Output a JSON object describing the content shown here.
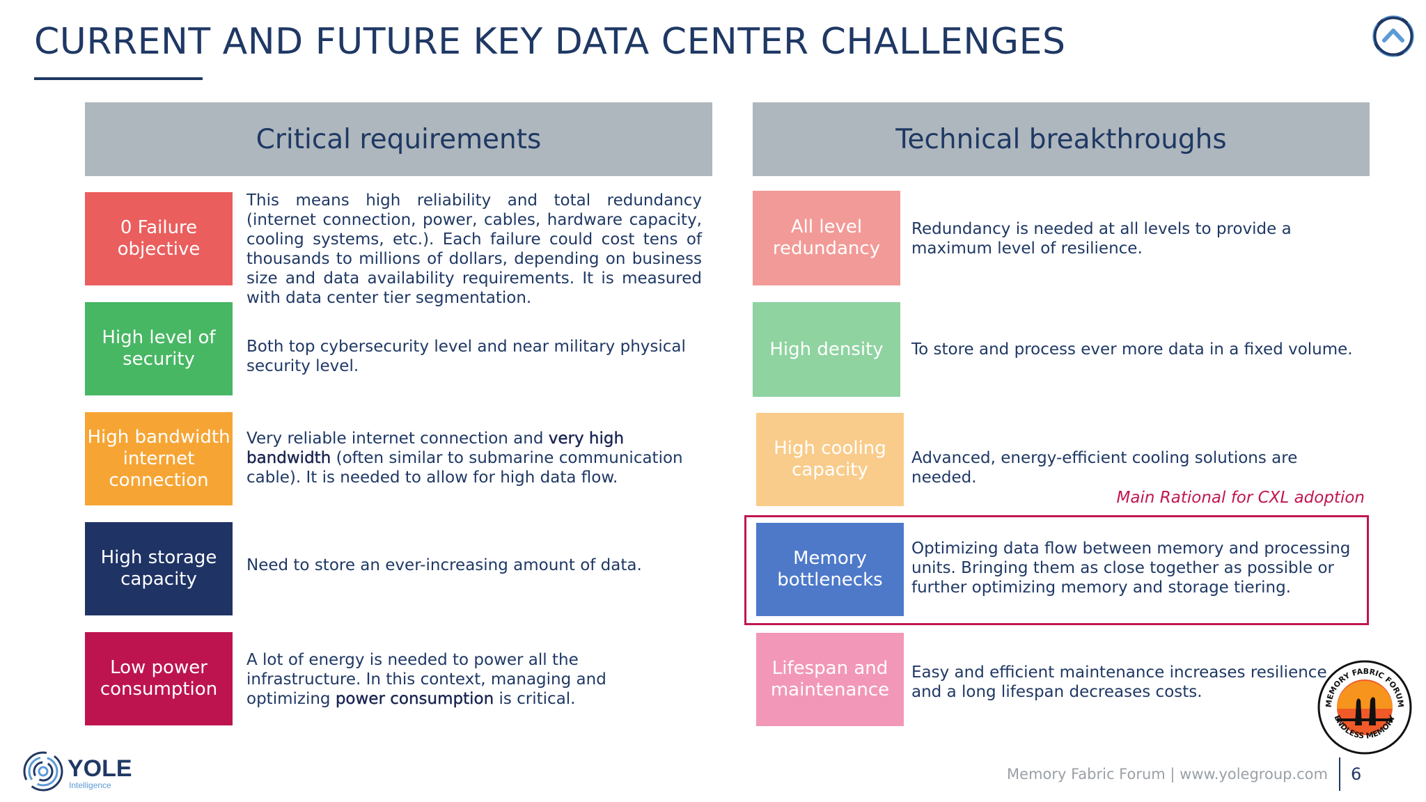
{
  "title": "CURRENT AND FUTURE KEY DATA CENTER CHALLENGES",
  "left_header": "Critical requirements",
  "right_header": "Technical breakthroughs",
  "colors": {
    "navy": "#1f3864",
    "header_gray": "#aeb7bd",
    "highlight": "#c0164f"
  },
  "left_items": [
    {
      "label": "0 Failure objective",
      "color": "#eb5e5e",
      "desc": "This means high reliability and total redundancy (internet connection, power, cables, hardware capacity, cooling systems, etc.). Each failure could cost tens of thousands to millions of dollars, depending on business size and data availability requirements. It is measured with data center tier segmentation."
    },
    {
      "label": "High level of security",
      "color": "#47b763",
      "desc": "Both top cybersecurity level and near military physical security level."
    },
    {
      "label": "High bandwidth internet connection",
      "color": "#f6a534",
      "desc_pre": "Very reliable internet connection and ",
      "desc_bold": "very high bandwidth",
      "desc_post": " (often similar to submarine communication cable). It is needed to allow for high data flow."
    },
    {
      "label": "High storage capacity",
      "color": "#1f3365",
      "desc": "Need to store an ever-increasing amount of data."
    },
    {
      "label": "Low power consumption",
      "color": "#bd1450",
      "desc_pre": "A lot of energy is needed to power all the infrastructure. In this context, managing and optimizing ",
      "desc_bold": "power consumption",
      "desc_post": " is critical."
    }
  ],
  "right_items": [
    {
      "label": "All level redundancy",
      "color": "#f29a97",
      "desc": "Redundancy is needed at all levels to provide a maximum level of resilience."
    },
    {
      "label": "High density",
      "color": "#8ed3a0",
      "desc": "To store and process ever more data in a fixed volume."
    },
    {
      "label": "High cooling capacity",
      "color": "#f9cc8b",
      "desc": "Advanced, energy-efficient cooling solutions are needed."
    },
    {
      "label": "Memory bottlenecks",
      "color": "#4e79c9",
      "desc": "Optimizing data flow between memory and processing units. Bringing them as close together as possible or further optimizing memory and storage tiering."
    },
    {
      "label": "Lifespan and maintenance",
      "color": "#f297b7",
      "desc": "Easy and efficient maintenance increases resilience and a long lifespan decreases costs."
    }
  ],
  "cxl_note": "Main Rational for CXL adoption",
  "footer": {
    "text": "Memory Fabric Forum | www.yolegroup.com",
    "page": "6"
  },
  "logos": {
    "yole_name": "YOLE",
    "yole_sub": "Intelligence",
    "badge_top": "MEMORY FABRIC FORUM",
    "badge_bottom": "ENDLESS MEMORY"
  }
}
